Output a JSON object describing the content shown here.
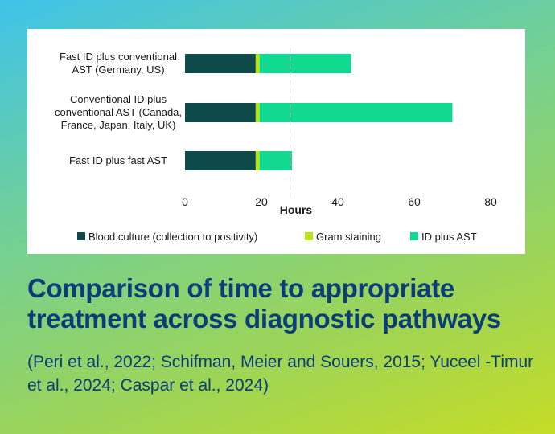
{
  "colors": {
    "blood_culture": "#0e4a4a",
    "gram_staining": "#b6e51a",
    "id_plus_ast": "#12d98f",
    "title": "#0b3d78"
  },
  "chart_data": {
    "type": "bar",
    "orientation": "horizontal",
    "stacked": true,
    "categories": [
      [
        "Fast ID plus conventional",
        "AST (Germany, US)"
      ],
      [
        "Conventional ID plus",
        "conventional AST (Canada,",
        "France, Japan, Italy, UK)"
      ],
      [
        "Fast ID plus fast AST"
      ]
    ],
    "series": [
      {
        "name": "Blood culture (collection to positivity)",
        "values": [
          18.5,
          18.5,
          18.5
        ]
      },
      {
        "name": "Gram staining",
        "values": [
          1,
          1,
          1
        ]
      },
      {
        "name": "ID plus AST",
        "values": [
          24,
          50.5,
          8.5
        ]
      }
    ],
    "xlabel": "Hours",
    "xlim": [
      0,
      80
    ],
    "xticks": [
      0,
      20,
      40,
      60,
      80
    ],
    "reference_line": 27.5,
    "grid": false,
    "legend_position": "bottom"
  },
  "headline": "Comparison of time to appropriate treatment across diagnostic pathways",
  "citations": "(Peri et al., 2022; Schifman, Meier and  Souers, 2015; Yuceel -Timur et al., 2024; Caspar et al., 2024)"
}
